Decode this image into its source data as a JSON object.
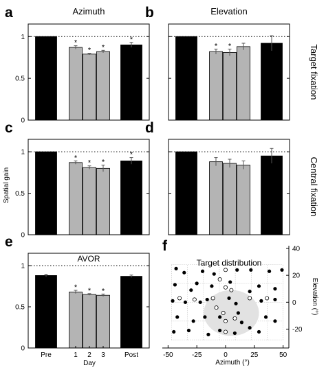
{
  "col_titles": [
    "Azimuth",
    "Elevation"
  ],
  "row_titles": [
    "Target fixation",
    "Central fixation"
  ],
  "y_axis_title": "Spatial gain",
  "chart_data": [
    {
      "type": "bar",
      "panel": "a",
      "categories": [
        "Pre",
        "1",
        "2",
        "3",
        "Post"
      ],
      "values": [
        1.0,
        0.87,
        0.79,
        0.82,
        0.9
      ],
      "errors": [
        0.0,
        0.02,
        0.01,
        0.015,
        0.03
      ],
      "bar_colors": [
        "#000000",
        "#b4b4b4",
        "#b4b4b4",
        "#b4b4b4",
        "#000000"
      ],
      "significant": [
        false,
        true,
        true,
        true,
        true
      ],
      "ylim": [
        0,
        1.15
      ],
      "yticks": [
        "0",
        "0.5",
        "1"
      ],
      "reference_line": 1
    },
    {
      "type": "bar",
      "panel": "b",
      "categories": [
        "Pre",
        "1",
        "2",
        "3",
        "Post"
      ],
      "values": [
        1.0,
        0.82,
        0.81,
        0.88,
        0.92
      ],
      "errors": [
        0.0,
        0.03,
        0.04,
        0.04,
        0.09
      ],
      "bar_colors": [
        "#000000",
        "#b4b4b4",
        "#b4b4b4",
        "#b4b4b4",
        "#000000"
      ],
      "significant": [
        false,
        true,
        true,
        false,
        false
      ],
      "ylim": [
        0,
        1.15
      ],
      "yticks": [
        "0",
        "0.5",
        "1"
      ],
      "reference_line": 1
    },
    {
      "type": "bar",
      "panel": "c",
      "categories": [
        "Pre",
        "1",
        "2",
        "3",
        "Post"
      ],
      "values": [
        1.0,
        0.87,
        0.81,
        0.8,
        0.89
      ],
      "errors": [
        0.0,
        0.02,
        0.02,
        0.04,
        0.04
      ],
      "bar_colors": [
        "#000000",
        "#b4b4b4",
        "#b4b4b4",
        "#b4b4b4",
        "#000000"
      ],
      "significant": [
        false,
        true,
        true,
        true,
        true
      ],
      "ylim": [
        0,
        1.15
      ],
      "yticks": [
        "0",
        "0.5",
        "1"
      ],
      "reference_line": 1
    },
    {
      "type": "bar",
      "panel": "d",
      "categories": [
        "Pre",
        "1",
        "2",
        "3",
        "Post"
      ],
      "values": [
        1.0,
        0.88,
        0.86,
        0.84,
        0.95
      ],
      "errors": [
        0.0,
        0.05,
        0.05,
        0.05,
        0.09
      ],
      "bar_colors": [
        "#000000",
        "#b4b4b4",
        "#b4b4b4",
        "#b4b4b4",
        "#000000"
      ],
      "significant": [
        false,
        false,
        false,
        false,
        false
      ],
      "ylim": [
        0,
        1.15
      ],
      "yticks": [
        "0",
        "0.5",
        "1"
      ],
      "reference_line": 1
    },
    {
      "type": "bar",
      "panel": "e",
      "title": "AVOR",
      "categories": [
        "Pre",
        "1",
        "2",
        "3",
        "Post"
      ],
      "values": [
        0.88,
        0.68,
        0.65,
        0.64,
        0.87
      ],
      "errors": [
        0.015,
        0.02,
        0.01,
        0.015,
        0.015
      ],
      "bar_colors": [
        "#000000",
        "#b4b4b4",
        "#b4b4b4",
        "#b4b4b4",
        "#000000"
      ],
      "significant": [
        false,
        true,
        true,
        true,
        false
      ],
      "ylim": [
        0,
        1.15
      ],
      "yticks": [
        "0",
        "0.5",
        "1"
      ],
      "reference_line": 1,
      "xlabel": "Day"
    },
    {
      "type": "scatter",
      "panel": "f",
      "title": "Target distribution",
      "xlabel": "Azimuth (°)",
      "ylabel": "Elevation (°)",
      "xlim": [
        -55,
        55
      ],
      "ylim": [
        -34,
        42
      ],
      "xticks": [
        "-50",
        "-25",
        "0",
        "25",
        "50"
      ],
      "yticks": [
        "-20",
        "0",
        "20",
        "40"
      ],
      "central_region": {
        "cx": 5,
        "cy": -8,
        "rx": 24,
        "ry": 17
      },
      "filled_points": [
        {
          "x": -43,
          "y": 25
        },
        {
          "x": -36,
          "y": 22
        },
        {
          "x": -20,
          "y": 23
        },
        {
          "x": -10,
          "y": 21
        },
        {
          "x": 10,
          "y": 24
        },
        {
          "x": 22,
          "y": 24
        },
        {
          "x": 38,
          "y": 23
        },
        {
          "x": 49,
          "y": 24
        },
        {
          "x": -44,
          "y": 13
        },
        {
          "x": -30,
          "y": 9
        },
        {
          "x": -25,
          "y": 14
        },
        {
          "x": -12,
          "y": 12
        },
        {
          "x": 4,
          "y": 15
        },
        {
          "x": 21,
          "y": 8
        },
        {
          "x": 29,
          "y": 12
        },
        {
          "x": 43,
          "y": 10
        },
        {
          "x": -46,
          "y": 1
        },
        {
          "x": -35,
          "y": 0
        },
        {
          "x": -22,
          "y": 0
        },
        {
          "x": -16,
          "y": 2
        },
        {
          "x": 3,
          "y": 3
        },
        {
          "x": 9,
          "y": -1
        },
        {
          "x": 31,
          "y": 1
        },
        {
          "x": 43,
          "y": 2
        },
        {
          "x": -42,
          "y": -11
        },
        {
          "x": -28,
          "y": -14
        },
        {
          "x": -18,
          "y": -11
        },
        {
          "x": -5,
          "y": -11
        },
        {
          "x": 11,
          "y": -8
        },
        {
          "x": 14,
          "y": -15
        },
        {
          "x": 35,
          "y": -11
        },
        {
          "x": 43,
          "y": -14
        },
        {
          "x": -45,
          "y": -22
        },
        {
          "x": -32,
          "y": -21
        },
        {
          "x": -15,
          "y": -24
        },
        {
          "x": -5,
          "y": -21
        },
        {
          "x": 8,
          "y": -23
        },
        {
          "x": 21,
          "y": -19
        },
        {
          "x": 29,
          "y": -22
        }
      ],
      "open_points": [
        {
          "x": 0,
          "y": 24
        },
        {
          "x": -5,
          "y": 17
        },
        {
          "x": 0,
          "y": 11
        },
        {
          "x": 5,
          "y": 9
        },
        {
          "x": -40,
          "y": 3
        },
        {
          "x": -27,
          "y": 2
        },
        {
          "x": -11,
          "y": 3
        },
        {
          "x": 21,
          "y": 3
        },
        {
          "x": 36,
          "y": 3
        },
        {
          "x": -8,
          "y": -4
        },
        {
          "x": -2,
          "y": -8
        },
        {
          "x": 0,
          "y": -14
        },
        {
          "x": 8,
          "y": -12
        },
        {
          "x": 0,
          "y": -22
        }
      ]
    }
  ]
}
